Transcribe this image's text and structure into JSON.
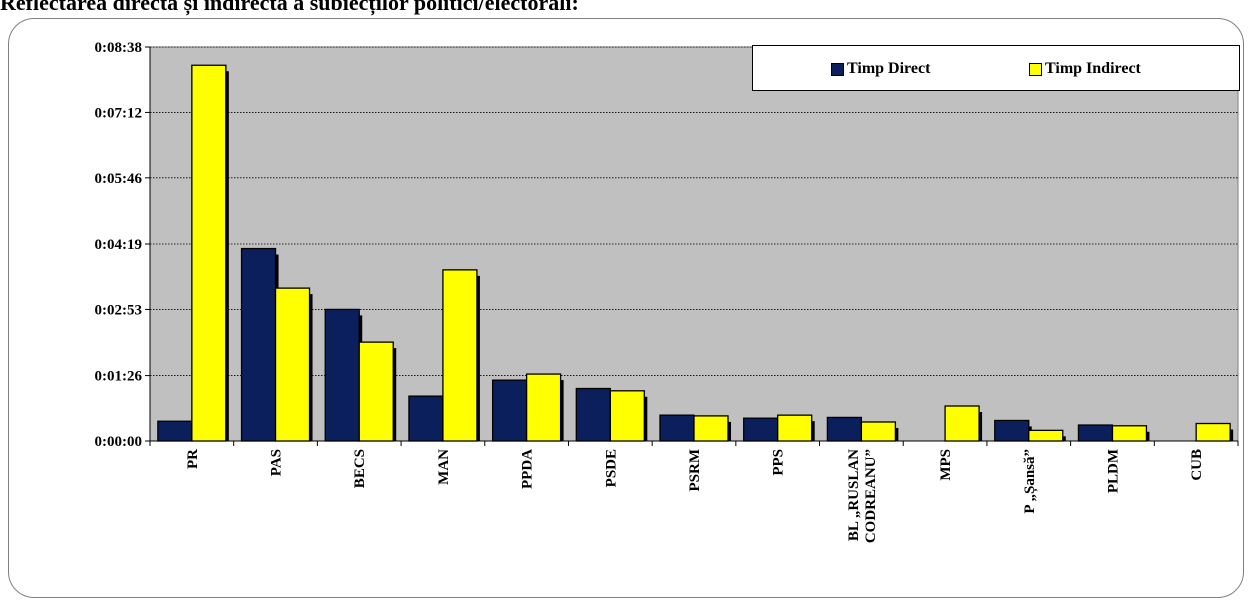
{
  "title": "Reflectarea directă și indirectă a subiecților politici/electorali:",
  "colors": {
    "direct": "#0b1f5c",
    "indirect": "#ffff00",
    "plot_bg": "#c0c0c0"
  },
  "chart_data": {
    "type": "bar",
    "categories": [
      "PR",
      "PAS",
      "BECS",
      "MAN",
      "PPDA",
      "PSDE",
      "PSRM",
      "PPS",
      "BL „RUSLAN CODREANU”",
      "MPS",
      "P „Șansă”",
      "PLDM",
      "CUB"
    ],
    "category_lines": [
      [
        "PR"
      ],
      [
        "PAS"
      ],
      [
        "BECS"
      ],
      [
        "MAN"
      ],
      [
        "PPDA"
      ],
      [
        "PSDE"
      ],
      [
        "PSRM"
      ],
      [
        "PPS"
      ],
      [
        "BL „RUSLAN",
        "CODREANU”"
      ],
      [
        "MPS"
      ],
      [
        "P „Șansă”"
      ],
      [
        "PLDM"
      ],
      [
        "CUB"
      ]
    ],
    "series": [
      {
        "name": "Timp Direct",
        "values": [
          26,
          253,
          173,
          59,
          80,
          69,
          34,
          30,
          31,
          0,
          27,
          21,
          0
        ]
      },
      {
        "name": "Timp Indirect",
        "values": [
          494,
          201,
          130,
          225,
          88,
          66,
          33,
          34,
          25,
          46,
          14,
          20,
          23
        ]
      }
    ],
    "ylim": [
      0,
      518
    ],
    "yticks": [
      0,
      86,
      173,
      259,
      346,
      432,
      518
    ],
    "ytick_labels": [
      "0:00:00",
      "0:01:26",
      "0:02:53",
      "0:04:19",
      "0:05:46",
      "0:07:12",
      "0:08:38"
    ],
    "grid": true,
    "legend": "top-right"
  }
}
